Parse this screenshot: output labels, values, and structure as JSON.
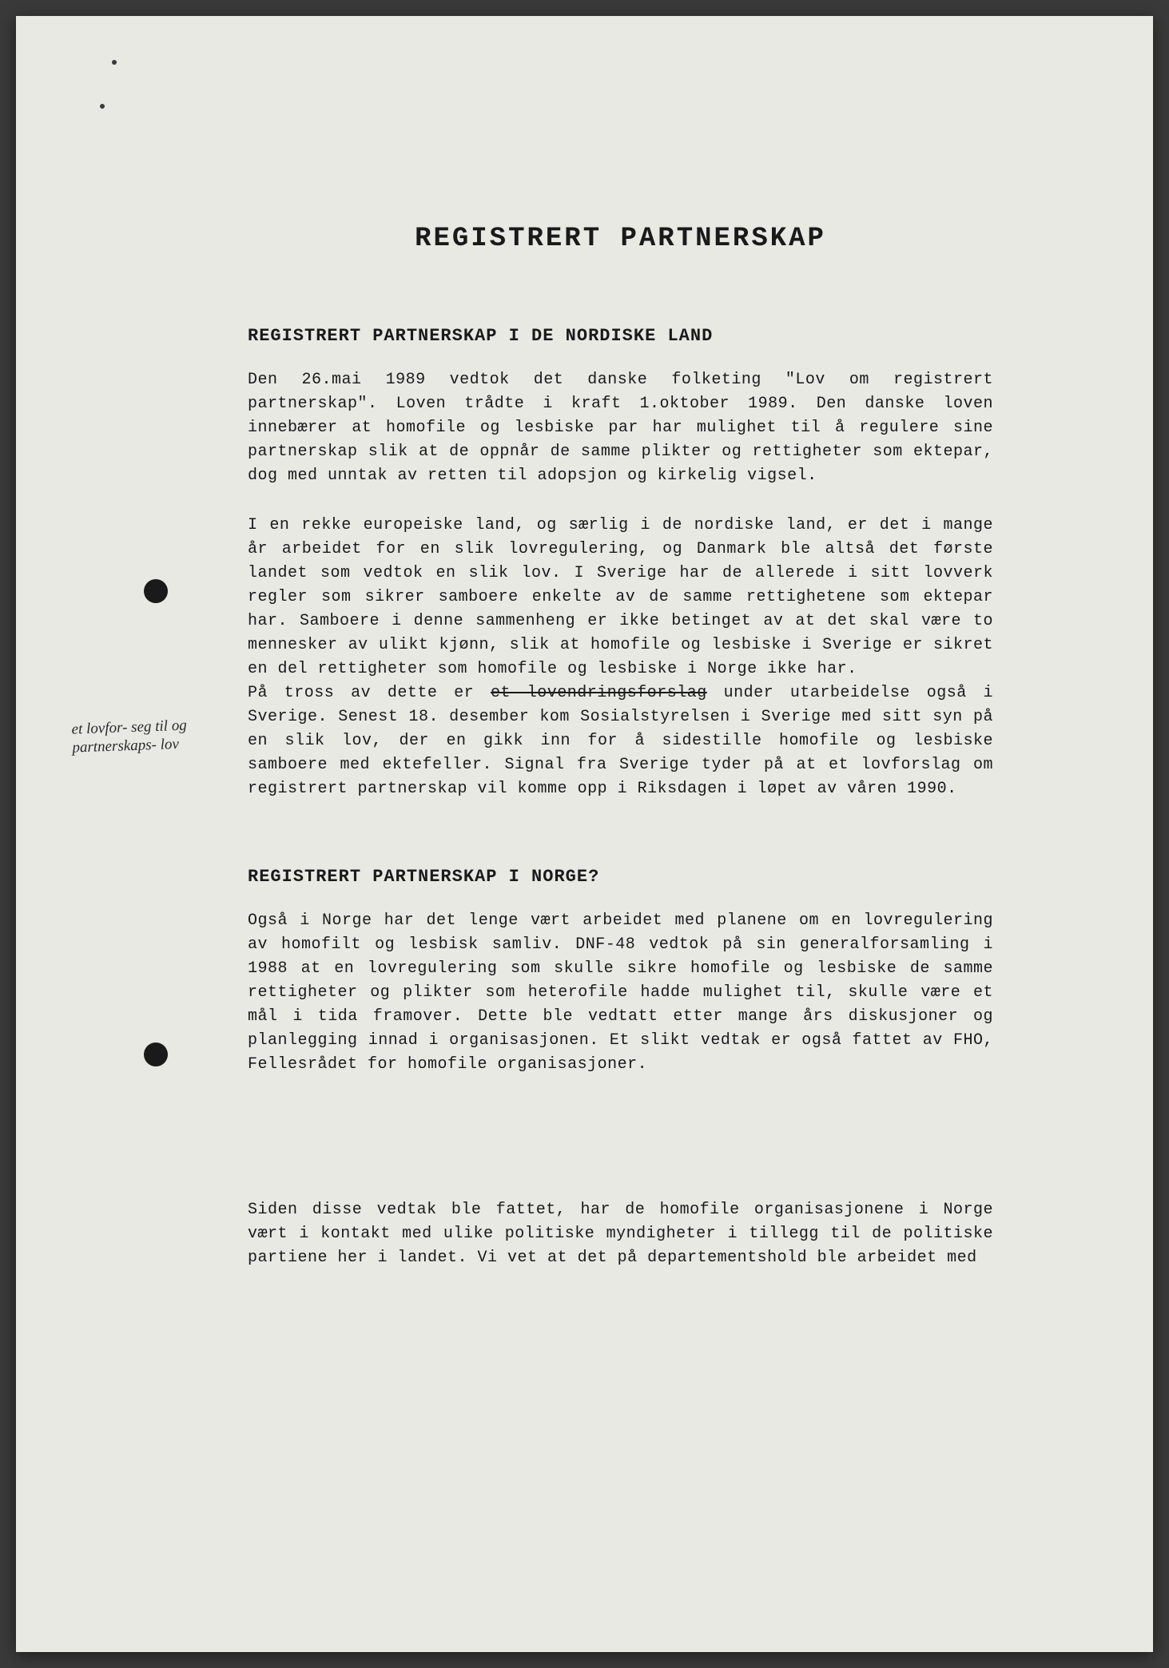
{
  "document": {
    "main_title": "REGISTRERT PARTNERSKAP",
    "section1": {
      "title": "REGISTRERT PARTNERSKAP I DE NORDISKE LAND",
      "paragraph1": "Den 26.mai 1989 vedtok det danske folketing \"Lov om registrert partnerskap\". Loven trådte i kraft 1.oktober 1989. Den danske loven innebærer at homofile og lesbiske par har mulighet til å regulere sine partnerskap slik at de oppnår de samme plikter og rettigheter som ektepar, dog med unntak av retten til adopsjon og kirkelig vigsel.",
      "paragraph2_part1": "I en rekke europeiske land, og særlig i de nordiske land, er det i mange år arbeidet for en slik lovregulering, og Danmark ble altså det første landet som vedtok en slik lov. I Sverige har de allerede i sitt lovverk regler som sikrer samboere enkelte av de samme rettighetene som ektepar har. Samboere i denne sammenheng er ikke betinget av at det skal være to mennesker av ulikt kjønn, slik at homofile og lesbiske i Sverige er sikret en del rettigheter som homofile og lesbiske i Norge ikke har.",
      "paragraph2_part2a": "På tross av dette er ",
      "paragraph2_strikethrough": "et lovendringsforslag",
      "paragraph2_part2b": " under utarbeidelse også i Sverige. Senest 18. desember kom Sosialstyrelsen i Sverige med sitt syn på en slik lov, der en gikk inn for å sidestille homofile og lesbiske samboere med ektefeller. Signal fra Sverige tyder på at et lovforslag om registrert partnerskap vil komme opp i Riksdagen i løpet av våren 1990."
    },
    "section2": {
      "title": "REGISTRERT PARTNERSKAP I NORGE?",
      "paragraph1": "Også i Norge har det lenge vært arbeidet med planene om en lovregulering av homofilt og lesbisk samliv. DNF-48 vedtok på sin generalforsamling i 1988 at en lovregulering som skulle sikre homofile og lesbiske de samme rettigheter og plikter som heterofile hadde mulighet til, skulle være et mål i tida framover. Dette ble vedtatt etter mange års diskusjoner og planlegging innad i organisasjonen. Et slikt vedtak er også fattet av FHO, Fellesrådet for homofile organisasjoner.",
      "paragraph2": "Siden disse vedtak ble fattet, har de homofile organisasjonene i Norge vært i kontakt med ulike politiske myndigheter i tillegg til de politiske partiene her i landet. Vi vet at det på departementshold ble arbeidet med"
    },
    "handwriting": "et lovfor- seg til og partnerskaps- lov",
    "colors": {
      "page_bg": "#e8e9e3",
      "text": "#1a1a1a",
      "body_bg": "#3a3a3a"
    }
  }
}
